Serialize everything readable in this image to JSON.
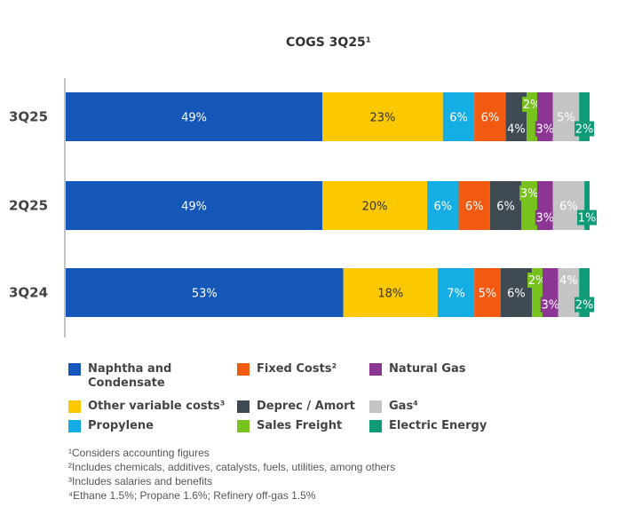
{
  "chart_data": {
    "type": "bar",
    "orientation": "horizontal",
    "stacked": true,
    "percent_stacked": true,
    "title": "COGS 3Q25¹",
    "categories": [
      "3Q25",
      "2Q25",
      "3Q24"
    ],
    "series": [
      {
        "name": "Naphtha and Condensate",
        "color": "#1557b8",
        "values": [
          49,
          49,
          53
        ],
        "labels": [
          "49%",
          "49%",
          "53%"
        ]
      },
      {
        "name": "Other variable costs³",
        "color": "#fcc800",
        "values": [
          23,
          20,
          18
        ],
        "labels": [
          "23%",
          "20%",
          "18%"
        ]
      },
      {
        "name": "Propylene",
        "color": "#14aee5",
        "values": [
          6,
          6,
          7
        ],
        "labels": [
          "6%",
          "6%",
          "7%"
        ]
      },
      {
        "name": "Fixed Costs²",
        "color": "#f25a12",
        "values": [
          6,
          6,
          5
        ],
        "labels": [
          "6%",
          "6%",
          "5%"
        ]
      },
      {
        "name": "Deprec / Amort",
        "color": "#3f4a53",
        "values": [
          4,
          6,
          6
        ],
        "labels": [
          "4%",
          "6%",
          "6%"
        ]
      },
      {
        "name": "Sales Freight",
        "color": "#78c21d",
        "values": [
          2,
          3,
          2
        ],
        "labels": [
          "2%",
          "3%",
          "2%"
        ]
      },
      {
        "name": "Natural Gas",
        "color": "#8d3595",
        "values": [
          3,
          3,
          3
        ],
        "labels": [
          "3%",
          "3%",
          "3%"
        ]
      },
      {
        "name": "Gas⁴",
        "color": "#c4c4c4",
        "values": [
          5,
          6,
          4
        ],
        "labels": [
          "5%",
          "6%",
          "4%"
        ]
      },
      {
        "name": "Electric Energy",
        "color": "#109b78",
        "values": [
          2,
          1,
          2
        ],
        "labels": [
          "2%",
          "1%",
          "2%"
        ]
      }
    ],
    "xlim": [
      0,
      100
    ],
    "grid": false
  },
  "legend": {
    "items": [
      {
        "key": "naphtha",
        "label": "Naphtha and Condensate",
        "color": "#1557b8"
      },
      {
        "key": "fixed",
        "label": "Fixed Costs²",
        "color": "#f25a12"
      },
      {
        "key": "natgas",
        "label": "Natural Gas",
        "color": "#8d3595"
      },
      {
        "key": "othervar",
        "label": "Other variable costs³",
        "color": "#fcc800"
      },
      {
        "key": "deprec",
        "label": "Deprec / Amort",
        "color": "#3f4a53"
      },
      {
        "key": "gas",
        "label": "Gas⁴",
        "color": "#c4c4c4"
      },
      {
        "key": "propylene",
        "label": "Propylene",
        "color": "#14aee5"
      },
      {
        "key": "freight",
        "label": "Sales Freight",
        "color": "#78c21d"
      },
      {
        "key": "electric",
        "label": "Electric Energy",
        "color": "#109b78"
      }
    ]
  },
  "footnotes": [
    "¹Considers accounting figures",
    "²Includes chemicals, additives, catalysts, fuels, utilities, among others",
    "³Includes salaries and benefits",
    "⁴Ethane 1.5%; Propane 1.6%; Refinery off-gas 1.5%"
  ]
}
